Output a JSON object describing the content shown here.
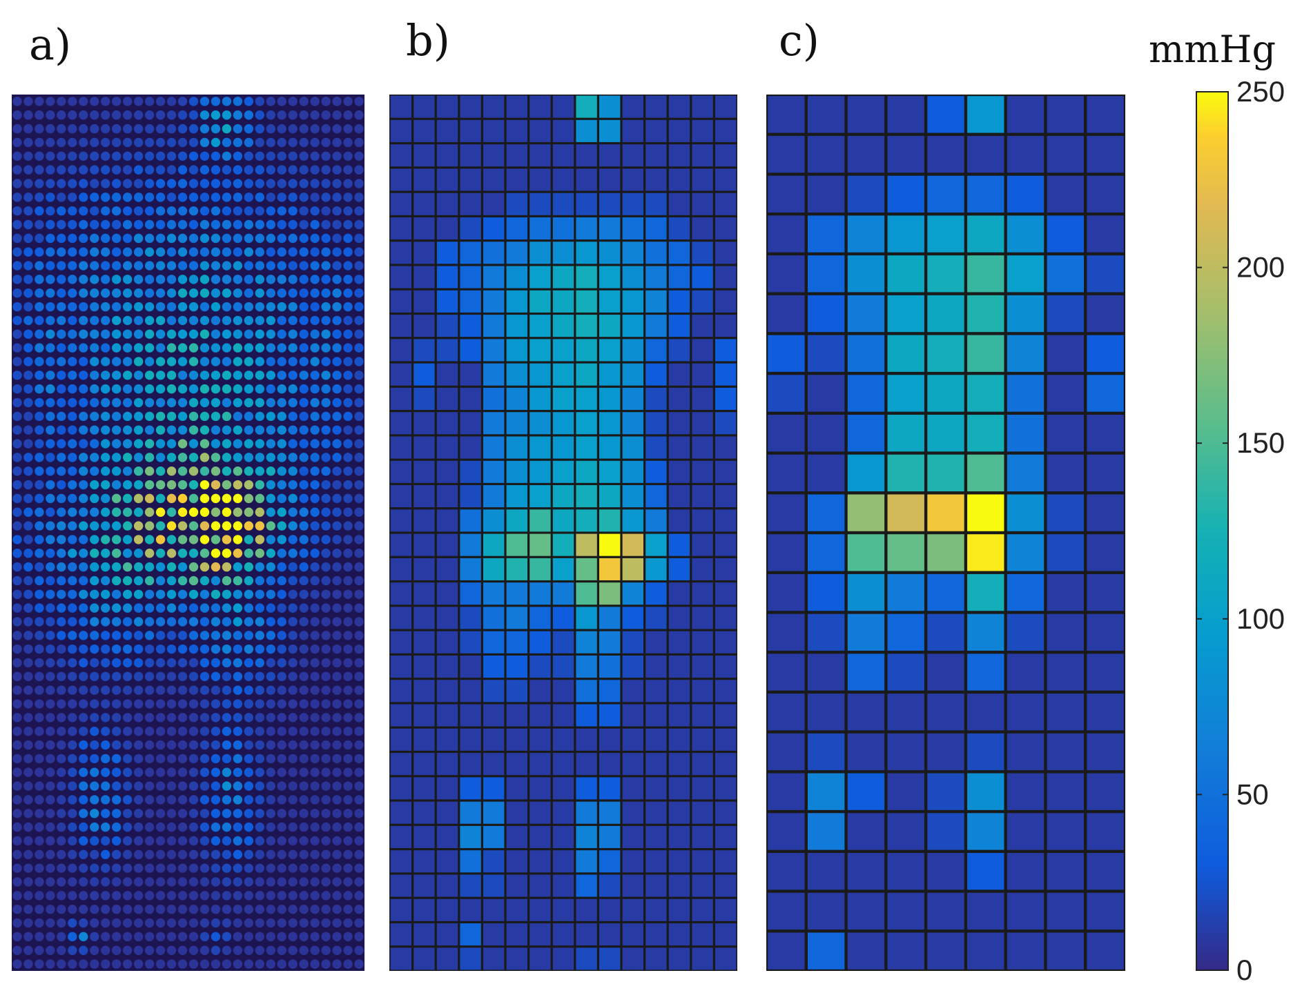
{
  "panels": [
    {
      "label": "a)"
    },
    {
      "label": "b)"
    },
    {
      "label": "c)"
    }
  ],
  "colorbar": {
    "unit": "mmHg",
    "min": 0,
    "max": 250,
    "ticks": [
      "0",
      "50",
      "100",
      "150",
      "200",
      "250"
    ],
    "colormap": "parula"
  },
  "chart_data": [
    {
      "type": "heatmap",
      "panel": "a)",
      "rows": 64,
      "cols": 32,
      "unit": "mmHg",
      "description_of_values": "high-resolution pressure map; values derived as a smooth field",
      "vmin": 0,
      "vmax": 250
    },
    {
      "type": "heatmap",
      "panel": "b)",
      "rows": 36,
      "cols": 15,
      "unit": "mmHg",
      "vmin": 0,
      "vmax": 250,
      "values": [
        [
          10,
          10,
          10,
          10,
          10,
          10,
          10,
          10,
          120,
          80,
          10,
          10,
          10,
          10,
          10
        ],
        [
          10,
          10,
          10,
          10,
          10,
          10,
          10,
          10,
          80,
          80,
          10,
          10,
          10,
          10,
          10
        ],
        [
          10,
          10,
          10,
          10,
          10,
          10,
          10,
          10,
          10,
          10,
          10,
          10,
          10,
          10,
          10
        ],
        [
          10,
          10,
          10,
          10,
          10,
          10,
          10,
          10,
          10,
          10,
          10,
          10,
          10,
          10,
          10
        ],
        [
          10,
          10,
          10,
          10,
          10,
          20,
          20,
          20,
          20,
          20,
          20,
          20,
          10,
          10,
          10
        ],
        [
          10,
          10,
          10,
          20,
          30,
          40,
          50,
          50,
          60,
          60,
          50,
          40,
          20,
          10,
          10
        ],
        [
          10,
          10,
          30,
          40,
          50,
          60,
          80,
          80,
          90,
          80,
          70,
          50,
          40,
          20,
          10
        ],
        [
          10,
          10,
          30,
          40,
          60,
          80,
          100,
          110,
          120,
          100,
          80,
          60,
          40,
          30,
          10
        ],
        [
          10,
          10,
          30,
          40,
          60,
          90,
          110,
          110,
          120,
          100,
          90,
          70,
          30,
          20,
          10
        ],
        [
          10,
          10,
          20,
          30,
          60,
          90,
          100,
          110,
          120,
          110,
          90,
          60,
          30,
          10,
          10
        ],
        [
          10,
          20,
          20,
          30,
          60,
          90,
          100,
          100,
          110,
          100,
          80,
          40,
          20,
          10,
          30
        ],
        [
          10,
          30,
          10,
          10,
          60,
          80,
          90,
          100,
          110,
          90,
          80,
          30,
          10,
          10,
          30
        ],
        [
          10,
          20,
          10,
          10,
          50,
          70,
          90,
          100,
          100,
          90,
          70,
          20,
          10,
          10,
          30
        ],
        [
          10,
          10,
          10,
          10,
          60,
          70,
          80,
          90,
          100,
          90,
          70,
          20,
          10,
          10,
          20
        ],
        [
          10,
          10,
          10,
          10,
          60,
          80,
          90,
          90,
          100,
          90,
          80,
          20,
          10,
          10,
          10
        ],
        [
          10,
          10,
          10,
          20,
          60,
          80,
          90,
          100,
          110,
          100,
          80,
          30,
          10,
          10,
          10
        ],
        [
          10,
          10,
          10,
          20,
          60,
          90,
          100,
          110,
          120,
          110,
          80,
          40,
          10,
          10,
          10
        ],
        [
          10,
          10,
          10,
          50,
          80,
          110,
          140,
          110,
          120,
          130,
          90,
          60,
          10,
          10,
          10
        ],
        [
          10,
          10,
          10,
          60,
          110,
          150,
          160,
          120,
          200,
          250,
          210,
          100,
          30,
          10,
          10
        ],
        [
          10,
          10,
          10,
          60,
          110,
          130,
          140,
          100,
          160,
          230,
          200,
          90,
          30,
          10,
          10
        ],
        [
          10,
          10,
          10,
          40,
          60,
          60,
          60,
          60,
          150,
          170,
          70,
          30,
          10,
          10,
          10
        ],
        [
          10,
          10,
          10,
          20,
          50,
          60,
          40,
          30,
          90,
          60,
          30,
          20,
          10,
          10,
          10
        ],
        [
          10,
          10,
          10,
          20,
          40,
          40,
          30,
          20,
          70,
          60,
          20,
          10,
          10,
          10,
          10
        ],
        [
          10,
          10,
          10,
          10,
          30,
          30,
          20,
          20,
          60,
          50,
          20,
          10,
          10,
          10,
          10
        ],
        [
          10,
          10,
          10,
          10,
          20,
          20,
          10,
          10,
          50,
          40,
          10,
          10,
          10,
          10,
          10
        ],
        [
          10,
          10,
          10,
          10,
          10,
          10,
          10,
          10,
          30,
          30,
          10,
          10,
          10,
          10,
          10
        ],
        [
          10,
          10,
          10,
          10,
          10,
          10,
          10,
          10,
          10,
          10,
          10,
          10,
          10,
          10,
          10
        ],
        [
          10,
          10,
          10,
          10,
          10,
          10,
          10,
          10,
          10,
          10,
          10,
          10,
          10,
          10,
          10
        ],
        [
          10,
          10,
          10,
          30,
          30,
          10,
          10,
          10,
          30,
          30,
          10,
          10,
          10,
          10,
          10
        ],
        [
          10,
          10,
          10,
          60,
          60,
          10,
          10,
          10,
          60,
          60,
          10,
          10,
          10,
          10,
          10
        ],
        [
          10,
          10,
          10,
          70,
          60,
          10,
          10,
          10,
          70,
          60,
          10,
          10,
          10,
          10,
          10
        ],
        [
          10,
          10,
          10,
          50,
          20,
          10,
          10,
          10,
          60,
          40,
          10,
          10,
          10,
          10,
          10
        ],
        [
          10,
          10,
          10,
          20,
          20,
          10,
          10,
          10,
          40,
          20,
          10,
          10,
          10,
          10,
          10
        ],
        [
          10,
          10,
          10,
          10,
          10,
          10,
          10,
          10,
          10,
          10,
          10,
          10,
          10,
          10,
          10
        ],
        [
          10,
          10,
          10,
          40,
          10,
          10,
          10,
          10,
          10,
          10,
          10,
          10,
          10,
          10,
          10
        ],
        [
          10,
          10,
          10,
          20,
          10,
          10,
          10,
          10,
          20,
          20,
          10,
          10,
          10,
          10,
          10
        ]
      ]
    },
    {
      "type": "heatmap",
      "panel": "c)",
      "rows": 22,
      "cols": 9,
      "unit": "mmHg",
      "vmin": 0,
      "vmax": 250,
      "values": [
        [
          10,
          10,
          10,
          10,
          30,
          90,
          10,
          10,
          10
        ],
        [
          10,
          10,
          10,
          10,
          10,
          10,
          10,
          10,
          10
        ],
        [
          10,
          10,
          20,
          30,
          40,
          40,
          30,
          10,
          10
        ],
        [
          10,
          40,
          70,
          90,
          100,
          110,
          80,
          30,
          10
        ],
        [
          10,
          40,
          80,
          110,
          120,
          140,
          100,
          50,
          20
        ],
        [
          10,
          30,
          60,
          100,
          110,
          130,
          80,
          20,
          10
        ],
        [
          30,
          20,
          50,
          110,
          120,
          140,
          70,
          10,
          30
        ],
        [
          20,
          10,
          40,
          100,
          110,
          120,
          50,
          10,
          40
        ],
        [
          10,
          10,
          40,
          110,
          110,
          120,
          50,
          10,
          10
        ],
        [
          10,
          10,
          90,
          130,
          130,
          150,
          60,
          10,
          10
        ],
        [
          10,
          40,
          180,
          210,
          230,
          250,
          80,
          20,
          10
        ],
        [
          10,
          40,
          150,
          160,
          170,
          245,
          70,
          20,
          10
        ],
        [
          10,
          30,
          80,
          60,
          40,
          120,
          40,
          10,
          10
        ],
        [
          10,
          20,
          60,
          40,
          20,
          70,
          20,
          10,
          10
        ],
        [
          10,
          10,
          40,
          20,
          10,
          40,
          10,
          10,
          10
        ],
        [
          10,
          10,
          10,
          10,
          10,
          10,
          10,
          10,
          10
        ],
        [
          10,
          20,
          10,
          10,
          10,
          20,
          10,
          10,
          10
        ],
        [
          10,
          70,
          30,
          10,
          20,
          80,
          10,
          10,
          10
        ],
        [
          10,
          60,
          10,
          10,
          20,
          70,
          10,
          10,
          10
        ],
        [
          10,
          10,
          10,
          10,
          10,
          30,
          10,
          10,
          10
        ],
        [
          10,
          10,
          10,
          10,
          10,
          10,
          10,
          10,
          10
        ],
        [
          10,
          40,
          10,
          10,
          10,
          10,
          10,
          10,
          10
        ]
      ]
    }
  ]
}
